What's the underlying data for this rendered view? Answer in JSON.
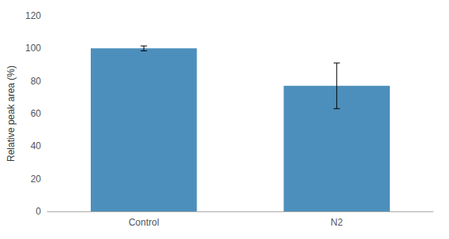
{
  "chart_data": {
    "type": "bar",
    "categories": [
      "Control",
      "N2"
    ],
    "values": [
      100,
      77
    ],
    "errors_lower": [
      1.5,
      14
    ],
    "errors_upper": [
      1.5,
      14
    ],
    "color": "#4d8fbc",
    "ylabel": "Relative peak area (%)",
    "ylim": [
      0,
      120
    ],
    "yticks": [
      0,
      20,
      40,
      60,
      80,
      100,
      120
    ],
    "grid": false
  }
}
